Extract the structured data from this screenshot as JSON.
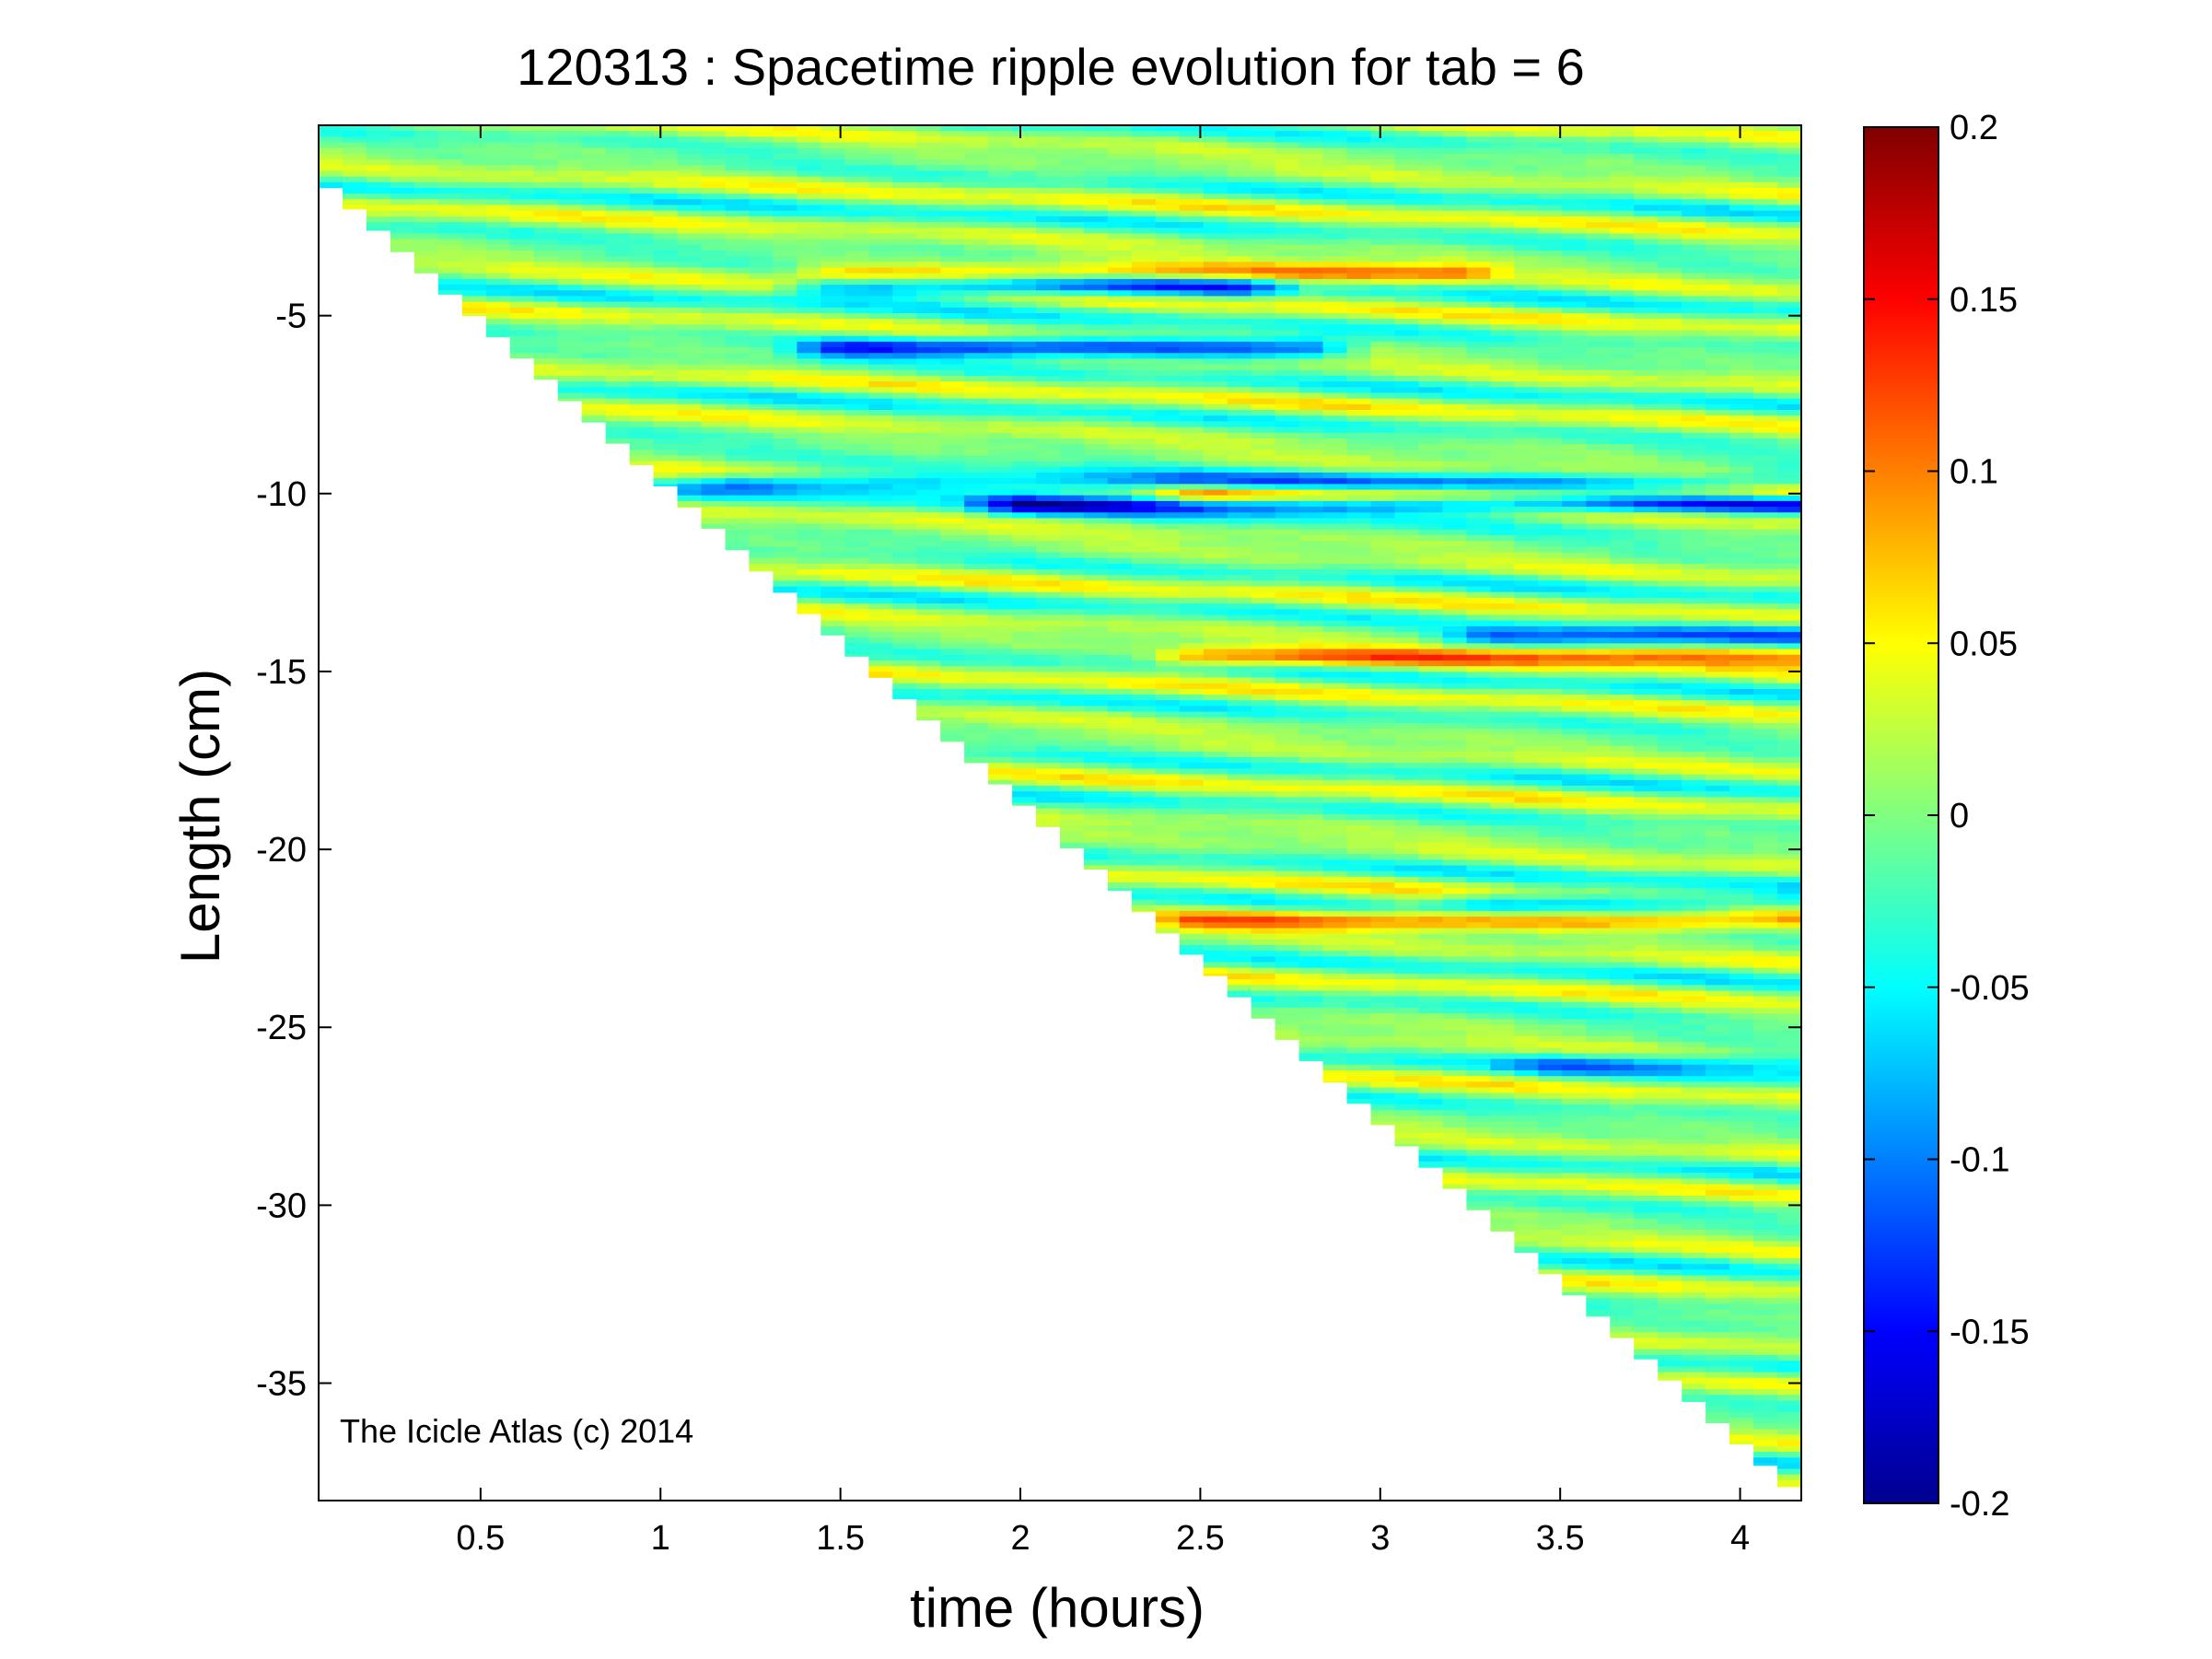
{
  "chart_data": {
    "type": "heatmap",
    "title": "120313 : Spacetime ripple evolution for tab = 6",
    "xlabel": "time (hours)",
    "ylabel": "Length (cm)",
    "xlim": [
      0.05,
      4.17
    ],
    "ylim": [
      -38.3,
      0.35
    ],
    "xticks": [
      0.5,
      1,
      1.5,
      2,
      2.5,
      3,
      3.5,
      4
    ],
    "xtick_labels": [
      "0.5",
      "1",
      "1.5",
      "2",
      "2.5",
      "3",
      "3.5",
      "4"
    ],
    "yticks": [
      -5,
      -10,
      -15,
      -20,
      -25,
      -30,
      -35
    ],
    "ytick_labels": [
      "-5",
      "-10",
      "-15",
      "-20",
      "-25",
      "-30",
      "-35"
    ],
    "colorbar": {
      "colormap": "jet",
      "clim": [
        -0.2,
        0.2
      ],
      "ticks": [
        0.2,
        0.15,
        0.1,
        0.05,
        0,
        -0.05,
        -0.1,
        -0.15,
        -0.2
      ],
      "tick_labels": [
        "0.2",
        "0.15",
        "0.1",
        "0.05",
        "0",
        "-0.05",
        "-0.1",
        "-0.15",
        "-0.2"
      ]
    },
    "grid": false,
    "data_extent": {
      "time_start_hours": 0.05,
      "time_end_hours": 4.17,
      "length_at_start_cm": -0.8,
      "length_at_end_cm": -37.9
    },
    "features": [
      {
        "length_cm": -4.2,
        "value": -0.12,
        "time_range": [
          1.5,
          2.6
        ]
      },
      {
        "length_cm": -3.8,
        "value": 0.09,
        "time_range": [
          1.5,
          3.2
        ]
      },
      {
        "length_cm": -5.9,
        "value": -0.13,
        "time_range": [
          1.5,
          2.8
        ]
      },
      {
        "length_cm": -10.3,
        "value": -0.14,
        "time_range": [
          2.0,
          4.17
        ]
      },
      {
        "length_cm": -10.0,
        "value": 0.11,
        "time_range": [
          2.5,
          4.17
        ]
      },
      {
        "length_cm": -9.7,
        "value": -0.1,
        "time_range": [
          1.2,
          4.17
        ]
      },
      {
        "length_cm": -14.6,
        "value": 0.1,
        "time_range": [
          2.5,
          4.17
        ]
      },
      {
        "length_cm": -14.0,
        "value": -0.1,
        "time_range": [
          3.3,
          4.17
        ]
      },
      {
        "length_cm": -22.0,
        "value": 0.1,
        "time_range": [
          2.5,
          4.17
        ]
      },
      {
        "length_cm": -21.5,
        "value": -0.08,
        "time_range": [
          3.3,
          4.17
        ]
      },
      {
        "length_cm": -26.0,
        "value": -0.08,
        "time_range": [
          3.5,
          4.17
        ]
      }
    ],
    "annotation": "The Icicle Atlas (c) 2014"
  }
}
